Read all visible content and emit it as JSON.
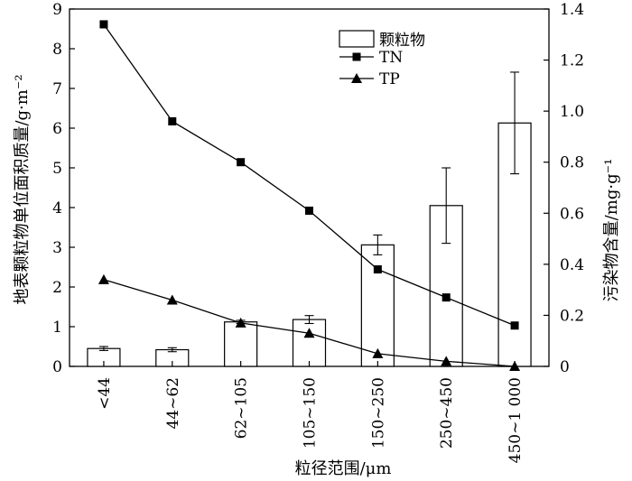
{
  "chart_data": {
    "type": "bar",
    "title": "",
    "xlabel": "粒径范围/μm",
    "ylabel": "地表颗粒物单位面积质量/g·m⁻²",
    "y2label": "污染物含量/mg·g⁻¹",
    "categories": [
      "<44",
      "44~62",
      "62~105",
      "105~150",
      "150~250",
      "250~450",
      "450~1 000"
    ],
    "ylim": [
      0,
      9
    ],
    "y_ticks": [
      "0",
      "1",
      "2",
      "3",
      "4",
      "5",
      "6",
      "7",
      "8",
      "9"
    ],
    "y2lim": [
      0,
      1.4
    ],
    "y2_ticks": [
      "0",
      "0.2",
      "0.4",
      "0.6",
      "0.8",
      "1.0",
      "1.2",
      "1.4"
    ],
    "series": [
      {
        "name": "颗粒物",
        "type": "bar",
        "axis": "left",
        "values": [
          0.45,
          0.42,
          1.12,
          1.18,
          3.06,
          4.05,
          6.13
        ],
        "error": [
          0.05,
          0.05,
          0.04,
          0.1,
          0.25,
          0.95,
          1.28
        ]
      },
      {
        "name": "TN",
        "type": "line",
        "marker": "square",
        "axis": "right",
        "values": [
          1.34,
          0.96,
          0.8,
          0.61,
          0.38,
          0.27,
          0.16
        ]
      },
      {
        "name": "TP",
        "type": "line",
        "marker": "triangle",
        "axis": "right",
        "values": [
          0.34,
          0.26,
          0.17,
          0.13,
          0.05,
          0.02,
          0.0
        ]
      }
    ],
    "legend": "top-right-inside",
    "grid": false
  }
}
